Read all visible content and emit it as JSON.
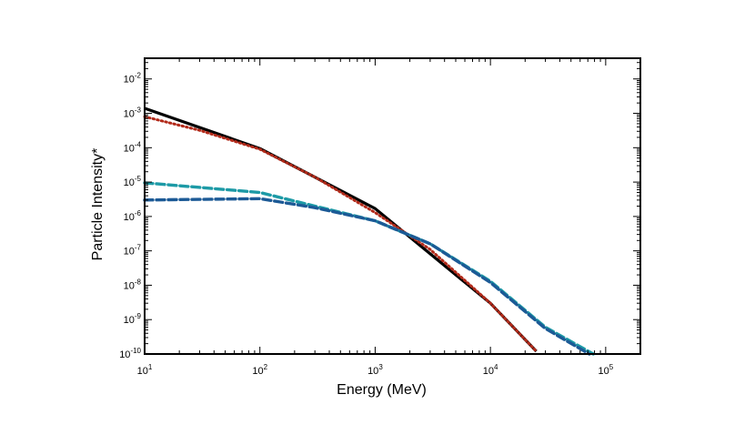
{
  "chart_data": {
    "type": "line",
    "title": "",
    "xlabel": "Energy (MeV)",
    "ylabel": "Particle Intensity*",
    "xscale": "log",
    "yscale": "log",
    "xlim": [
      10,
      200000
    ],
    "ylim": [
      1e-10,
      0.04
    ],
    "grid": false,
    "legend": "none",
    "x_ticks": [
      {
        "base": "10",
        "exp": "1",
        "value": 10
      },
      {
        "base": "10",
        "exp": "2",
        "value": 100
      },
      {
        "base": "10",
        "exp": "3",
        "value": 1000
      },
      {
        "base": "10",
        "exp": "4",
        "value": 10000
      },
      {
        "base": "10",
        "exp": "5",
        "value": 100000
      }
    ],
    "y_ticks": [
      {
        "base": "10",
        "exp": "-10",
        "value": 1e-10
      },
      {
        "base": "10",
        "exp": "-9",
        "value": 1e-09
      },
      {
        "base": "10",
        "exp": "-8",
        "value": 1e-08
      },
      {
        "base": "10",
        "exp": "-7",
        "value": 1e-07
      },
      {
        "base": "10",
        "exp": "-6",
        "value": 1e-06
      },
      {
        "base": "10",
        "exp": "-5",
        "value": 1e-05
      },
      {
        "base": "10",
        "exp": "-4",
        "value": 0.0001
      },
      {
        "base": "10",
        "exp": "-3",
        "value": 0.001
      },
      {
        "base": "10",
        "exp": "-2",
        "value": 0.01
      }
    ],
    "series": [
      {
        "color": "#000000",
        "style": "solid",
        "x": [
          10,
          100,
          1000,
          10000,
          25000
        ],
        "y": [
          0.0014,
          9.5e-05,
          1.7e-06,
          3e-09,
          1.2e-10
        ]
      },
      {
        "color": "#b22a1a",
        "style": "dotted",
        "x": [
          10,
          30,
          100,
          300,
          1000,
          3000,
          10000,
          25000
        ],
        "y": [
          0.0008,
          0.00032,
          9e-05,
          1.4e-05,
          1.3e-06,
          1.1e-07,
          3e-09,
          1.2e-10
        ]
      },
      {
        "color": "#1d9aa6",
        "style": "dashed",
        "x": [
          10,
          100,
          300,
          1000,
          3000,
          10000,
          30000,
          78000
        ],
        "y": [
          9.5e-06,
          5e-06,
          2e-06,
          7.5e-07,
          1.6e-07,
          1.3e-08,
          6e-10,
          1e-10
        ]
      },
      {
        "color": "#1c5a96",
        "style": "dashed",
        "x": [
          10,
          100,
          300,
          1000,
          3000,
          10000,
          30000,
          72000
        ],
        "y": [
          3e-06,
          3.3e-06,
          1.8e-06,
          7.5e-07,
          1.6e-07,
          1.2e-08,
          5.5e-10,
          1e-10
        ]
      }
    ]
  }
}
